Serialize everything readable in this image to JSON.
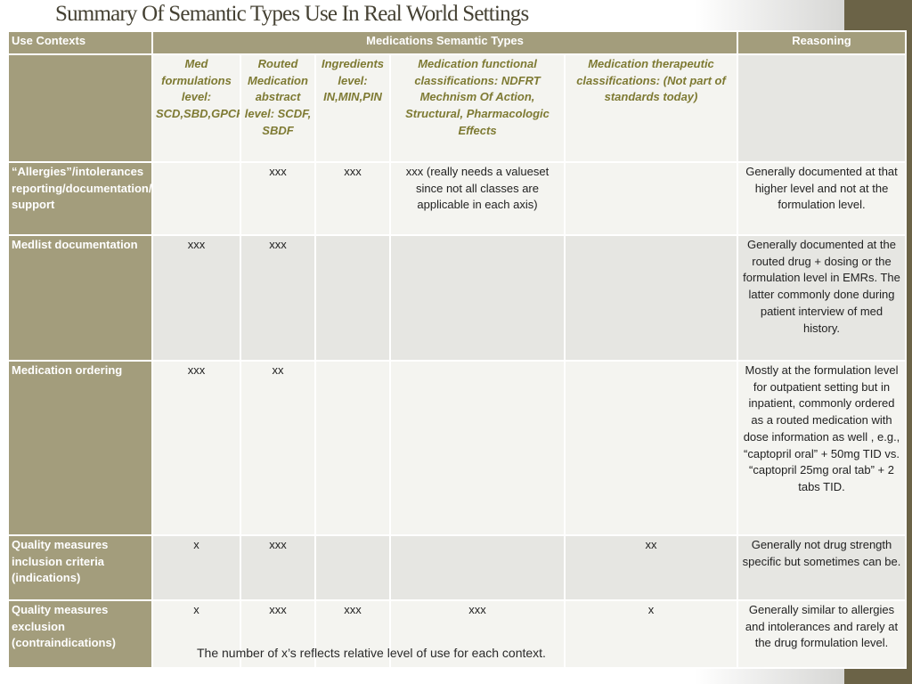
{
  "slide": {
    "title": "Summary Of Semantic Types Use In Real World Settings",
    "footnote": "The number of x’s reflects relative level of use for each context.",
    "colors": {
      "header_bg": "#a39d7c",
      "sidebar_bar": "#6b6347",
      "row_light": "#f4f4f0",
      "row_dark": "#e6e6e2",
      "subheader_text": "#7e7a33"
    }
  },
  "table": {
    "headers": {
      "use_contexts": "Use Contexts",
      "semantic_types": "Medications Semantic Types",
      "reasoning": "Reasoning"
    },
    "subheaders": [
      "Med formulations level: SCD,SBD,GPCK,BPCK",
      "Routed Medication abstract level: SCDF, SBDF",
      "Ingredients level: IN,MIN,PIN",
      "Medication functional classifications: NDFRT Mechnism Of Action, Structural, Pharmacologic Effects",
      "Medication therapeutic classifications: (Not part of standards today)"
    ],
    "rows": [
      {
        "context": "“Allergies”/intolerances reporting/documentation/decision support",
        "cells": [
          "",
          "xxx",
          "xxx",
          "xxx (really needs a valueset since not all classes are applicable in each axis)",
          ""
        ],
        "reasoning": "Generally documented at that higher level and not at the formulation level."
      },
      {
        "context": "Medlist documentation",
        "cells": [
          "xxx",
          "xxx",
          "",
          "",
          ""
        ],
        "reasoning": "Generally documented at the routed drug + dosing or the formulation level in EMRs.  The latter commonly done during patient interview of med history."
      },
      {
        "context": "Medication ordering",
        "cells": [
          "xxx",
          "xx",
          "",
          "",
          ""
        ],
        "reasoning": "Mostly at the formulation level for outpatient setting but in inpatient, commonly ordered as a routed medication with dose information as well , e.g., “captopril oral” + 50mg TID vs. “captopril 25mg oral tab” + 2 tabs TID."
      },
      {
        "context": "Quality measures inclusion criteria (indications)",
        "cells": [
          "x",
          "xxx",
          "",
          "",
          "xx"
        ],
        "reasoning": "Generally not drug strength specific but sometimes can be."
      },
      {
        "context": "Quality measures exclusion (contraindications)",
        "cells": [
          "x",
          "xxx",
          "xxx",
          "xxx",
          "x"
        ],
        "reasoning": "Generally similar to allergies and intolerances and rarely at the drug formulation level."
      }
    ]
  }
}
